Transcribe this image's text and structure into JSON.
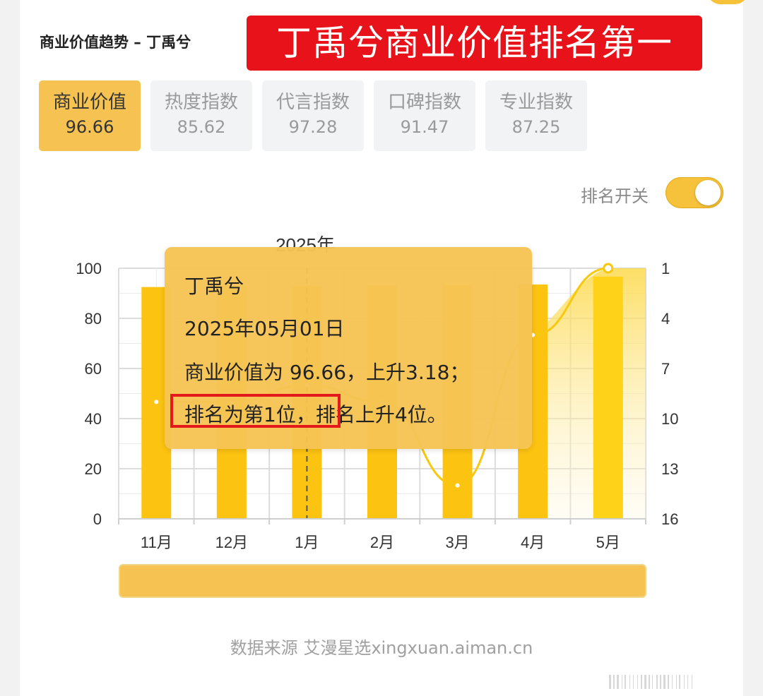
{
  "header": {
    "title": "商业价值趋势 – 丁禹兮",
    "banner": "丁禹兮商业价值排名第一"
  },
  "tabs": [
    {
      "label": "商业价值",
      "value": "96.66",
      "active": true
    },
    {
      "label": "热度指数",
      "value": "85.62",
      "active": false
    },
    {
      "label": "代言指数",
      "value": "97.28",
      "active": false
    },
    {
      "label": "口碑指数",
      "value": "91.47",
      "active": false
    },
    {
      "label": "专业指数",
      "value": "87.25",
      "active": false
    }
  ],
  "toggle": {
    "label": "排名开关",
    "on": true
  },
  "chart_data": {
    "type": "bar",
    "title": "2025年",
    "categories": [
      "11月",
      "12月",
      "1月",
      "2月",
      "3月",
      "4月",
      "5月"
    ],
    "series": [
      {
        "type": "bar",
        "values": [
          92.5,
          92.8,
          93.0,
          93.2,
          93.3,
          93.5,
          96.66
        ]
      },
      {
        "type": "line",
        "axis": "right",
        "values": [
          9,
          9,
          8,
          9,
          14,
          5,
          1
        ]
      }
    ],
    "ylim_left": [
      0,
      100
    ],
    "yticks_left": [
      "100",
      "80",
      "60",
      "40",
      "20",
      "0"
    ],
    "ylim_right": [
      1,
      16
    ],
    "yticks_right": [
      "1",
      "4",
      "7",
      "10",
      "13",
      "16"
    ],
    "grid": true,
    "highlight_category": "5月"
  },
  "tooltip": {
    "name": "丁禹兮",
    "date": "2025年05月01日",
    "value_line": "商业价值为 96.66，上升3.18；",
    "rank_part1": "排名为第1位，",
    "rank_part2": "排名上升4位。"
  },
  "footer": {
    "source": "数据来源  艾漫星选xingxuan.aiman.cn"
  },
  "colors": {
    "accent": "#f6c352",
    "bar": "#fcc311",
    "banner": "#e8121a",
    "rank_box": "#e4191b"
  }
}
